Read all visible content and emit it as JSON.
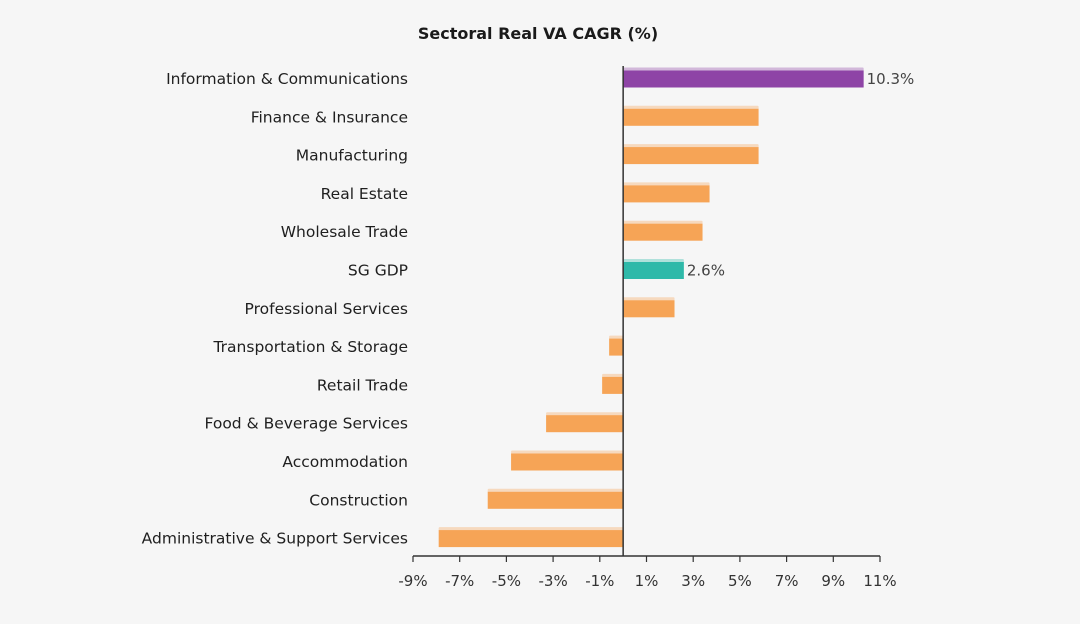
{
  "chart_data": {
    "type": "bar",
    "orientation": "horizontal",
    "title": "Sectoral Real VA CAGR (%)",
    "xlabel": "",
    "ylabel": "",
    "xlim": [
      -9,
      11
    ],
    "xticks": [
      -9,
      -7,
      -5,
      -3,
      -1,
      1,
      3,
      5,
      7,
      9,
      11
    ],
    "xtick_labels": [
      "-9%",
      "-7%",
      "-5%",
      "-3%",
      "-1%",
      "1%",
      "3%",
      "5%",
      "7%",
      "9%",
      "11%"
    ],
    "grid": false,
    "categories": [
      "Information & Communications",
      "Finance & Insurance",
      "Manufacturing",
      "Real Estate",
      "Wholesale Trade",
      "SG GDP",
      "Professional Services",
      "Transportation & Storage",
      "Retail Trade",
      "Food & Beverage Services",
      "Accommodation",
      "Construction",
      "Administrative & Support Services"
    ],
    "values": [
      10.3,
      5.8,
      5.8,
      3.7,
      3.4,
      2.6,
      2.2,
      -0.6,
      -0.9,
      -3.3,
      -4.8,
      -5.8,
      -7.9
    ],
    "data_labels": [
      "10.3%",
      "",
      "",
      "",
      "",
      "2.6%",
      "",
      "",
      "",
      "",
      "",
      "",
      ""
    ],
    "colors": {
      "default": "#f6a456",
      "highlight_purple": "#8e44a6",
      "highlight_teal": "#2fb9a9",
      "axis": "#333333"
    },
    "bar_colors": [
      "#8e44a6",
      "#f6a456",
      "#f6a456",
      "#f6a456",
      "#f6a456",
      "#2fb9a9",
      "#f6a456",
      "#f6a456",
      "#f6a456",
      "#f6a456",
      "#f6a456",
      "#f6a456",
      "#f6a456"
    ]
  }
}
